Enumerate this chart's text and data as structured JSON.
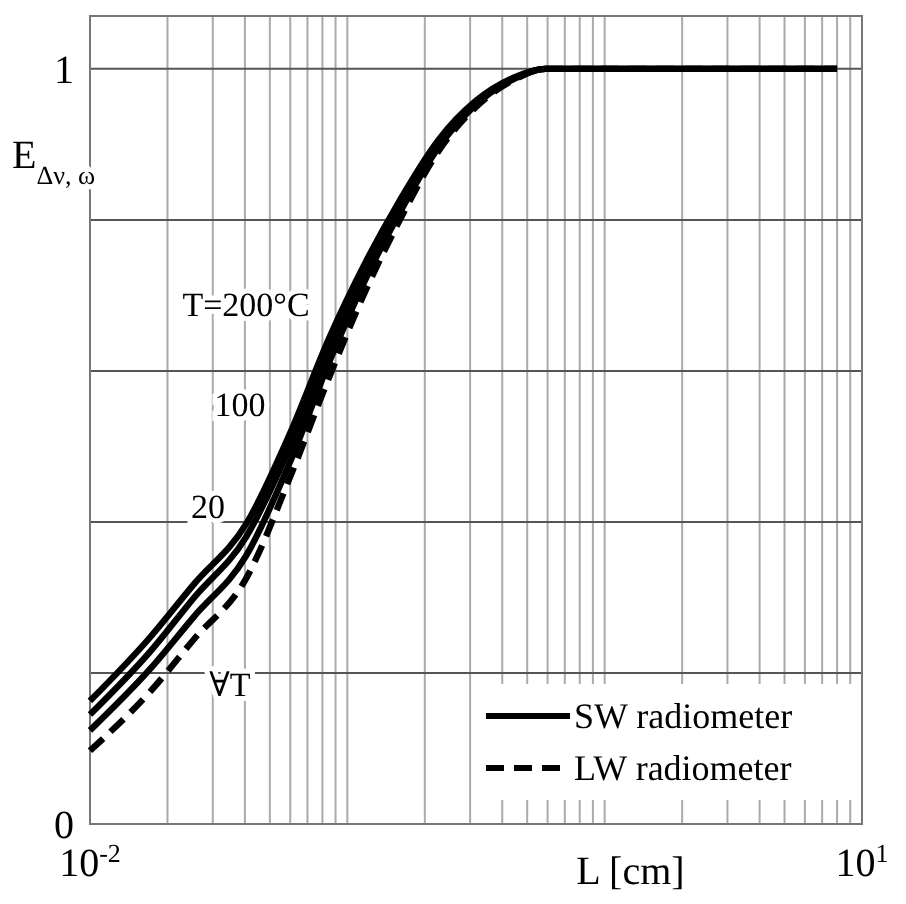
{
  "chart_data": {
    "type": "line",
    "xlabel": "L [cm]",
    "ylabel": "E$_{Δν, ω}$",
    "log": "x",
    "grid": true,
    "legend": "bottom right",
    "xlim": [
      0.01,
      10
    ],
    "ylim": [
      0,
      1.07
    ],
    "xticks": [
      {
        "value": 0.01,
        "label": "10$^{-2}$"
      },
      {
        "value": 0.02,
        "label": null
      },
      {
        "value": 0.03,
        "label": null
      },
      {
        "value": 0.04,
        "label": null
      },
      {
        "value": 0.05,
        "label": null
      },
      {
        "value": 0.06,
        "label": null
      },
      {
        "value": 0.07,
        "label": null
      },
      {
        "value": 0.08,
        "label": null
      },
      {
        "value": 0.09,
        "label": null
      },
      {
        "value": 0.1,
        "label": null
      },
      {
        "value": 0.2,
        "label": null
      },
      {
        "value": 0.3,
        "label": null
      },
      {
        "value": 0.4,
        "label": null
      },
      {
        "value": 0.5,
        "label": null
      },
      {
        "value": 0.6,
        "label": null
      },
      {
        "value": 0.7,
        "label": null
      },
      {
        "value": 0.8,
        "label": null
      },
      {
        "value": 0.9,
        "label": null
      },
      {
        "value": 1,
        "label": null
      },
      {
        "value": 2,
        "label": null
      },
      {
        "value": 3,
        "label": null
      },
      {
        "value": 4,
        "label": null
      },
      {
        "value": 5,
        "label": null
      },
      {
        "value": 6,
        "label": null
      },
      {
        "value": 7,
        "label": null
      },
      {
        "value": 8,
        "label": null
      },
      {
        "value": 9,
        "label": null
      },
      {
        "value": 10,
        "label": "10$^{1}$"
      }
    ],
    "yticks": [
      0,
      {
        "value": 0.2,
        "label": null
      },
      {
        "value": 0.4,
        "label": null
      },
      {
        "value": 0.6,
        "label": null
      },
      {
        "value": 0.8,
        "label": null
      },
      1
    ],
    "x": [
      0.01,
      0.0171,
      0.0254,
      0.0404,
      0.06,
      0.0846,
      0.119,
      0.16,
      0.225,
      0.317,
      0.447,
      0.589,
      8
    ],
    "series": [
      {
        "name": "SW radiometer",
        "color": "#000000",
        "line_style": "solid",
        "values": [
          0.163,
          0.247,
          0.318,
          0.397,
          0.518,
          0.642,
          0.747,
          0.826,
          0.905,
          0.958,
          0.989,
          1,
          1
        ]
      },
      {
        "color": "#000000",
        "line_style": "solid",
        "values": [
          0.145,
          0.228,
          0.3,
          0.38,
          0.5,
          0.625,
          0.735,
          0.818,
          0.9,
          0.955,
          0.988,
          1,
          1
        ]
      },
      {
        "color": "#000000",
        "line_style": "solid",
        "values": [
          0.124,
          0.205,
          0.275,
          0.355,
          0.48,
          0.61,
          0.725,
          0.81,
          0.895,
          0.953,
          0.987,
          1,
          1
        ]
      },
      {
        "name": "LW radiometer",
        "color": "#000000",
        "line_style": "dashed",
        "values": [
          0.097,
          0.175,
          0.245,
          0.325,
          0.46,
          0.59,
          0.71,
          0.8,
          0.89,
          0.95,
          0.986,
          1,
          1
        ]
      }
    ],
    "annotations": [
      "T=200°C",
      "100",
      "20",
      "∀T"
    ]
  }
}
